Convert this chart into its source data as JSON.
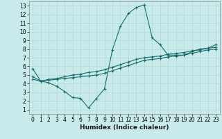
{
  "xlabel": "Humidex (Indice chaleur)",
  "ylabel": "",
  "bg_color": "#c8eaea",
  "grid_color": "#b0d8d8",
  "line_color": "#1a6b6b",
  "xlim": [
    -0.5,
    23.5
  ],
  "ylim": [
    0.5,
    13.5
  ],
  "xticks": [
    0,
    1,
    2,
    3,
    4,
    5,
    6,
    7,
    8,
    9,
    10,
    11,
    12,
    13,
    14,
    15,
    16,
    17,
    18,
    19,
    20,
    21,
    22,
    23
  ],
  "yticks": [
    1,
    2,
    3,
    4,
    5,
    6,
    7,
    8,
    9,
    10,
    11,
    12,
    13
  ],
  "line1_x": [
    0,
    1,
    2,
    3,
    4,
    5,
    6,
    7,
    8,
    9,
    10,
    11,
    12,
    13,
    14,
    15,
    16,
    17,
    18,
    19,
    20,
    21,
    22,
    23
  ],
  "line1_y": [
    5.7,
    4.3,
    4.1,
    3.7,
    3.1,
    2.4,
    2.3,
    1.2,
    2.3,
    3.4,
    7.9,
    10.6,
    12.1,
    12.8,
    13.1,
    9.3,
    8.5,
    7.3,
    7.3,
    7.3,
    7.7,
    8.0,
    8.1,
    8.5
  ],
  "line2_x": [
    0,
    1,
    2,
    3,
    4,
    5,
    6,
    7,
    8,
    9,
    10,
    11,
    12,
    13,
    14,
    15,
    16,
    17,
    18,
    19,
    20,
    21,
    22,
    23
  ],
  "line2_y": [
    4.5,
    4.3,
    4.4,
    4.5,
    4.6,
    4.7,
    4.8,
    4.9,
    5.0,
    5.2,
    5.5,
    5.8,
    6.1,
    6.4,
    6.7,
    6.8,
    6.9,
    7.1,
    7.2,
    7.3,
    7.5,
    7.7,
    7.9,
    8.0
  ],
  "line3_x": [
    0,
    1,
    2,
    3,
    4,
    5,
    6,
    7,
    8,
    9,
    10,
    11,
    12,
    13,
    14,
    15,
    16,
    17,
    18,
    19,
    20,
    21,
    22,
    23
  ],
  "line3_y": [
    4.8,
    4.3,
    4.5,
    4.6,
    4.8,
    5.0,
    5.1,
    5.3,
    5.4,
    5.6,
    5.9,
    6.2,
    6.5,
    6.8,
    7.0,
    7.1,
    7.2,
    7.4,
    7.5,
    7.6,
    7.8,
    7.9,
    8.1,
    8.2
  ],
  "xlabel_fontsize": 6.5,
  "tick_fontsize": 5.5,
  "lw": 0.8,
  "ms": 2.5
}
